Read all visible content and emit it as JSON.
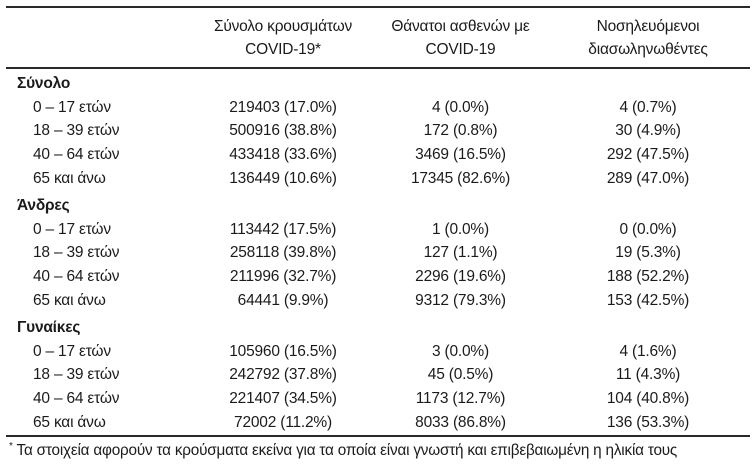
{
  "table": {
    "col_headers": [
      {
        "line1": "Σύνολο κρουσμάτων",
        "line2": "COVID-19*"
      },
      {
        "line1": "Θάνατοι ασθενών με",
        "line2": "COVID-19"
      },
      {
        "line1": "Νοσηλευόμενοι",
        "line2": "διασωληνωθέντες"
      }
    ],
    "groups": [
      {
        "label": "Σύνολο",
        "rows": [
          {
            "label": "0 – 17 ετών",
            "cases": "219403 (17.0%)",
            "deaths": "4 (0.0%)",
            "intubated": "4 (0.7%)"
          },
          {
            "label": "18 – 39 ετών",
            "cases": "500916 (38.8%)",
            "deaths": "172 (0.8%)",
            "intubated": "30 (4.9%)"
          },
          {
            "label": "40 – 64 ετών",
            "cases": "433418 (33.6%)",
            "deaths": "3469 (16.5%)",
            "intubated": "292 (47.5%)"
          },
          {
            "label": "65 και άνω",
            "cases": "136449 (10.6%)",
            "deaths": "17345 (82.6%)",
            "intubated": "289 (47.0%)"
          }
        ]
      },
      {
        "label": "Άνδρες",
        "rows": [
          {
            "label": "0 – 17 ετών",
            "cases": "113442 (17.5%)",
            "deaths": "1 (0.0%)",
            "intubated": "0 (0.0%)"
          },
          {
            "label": "18 – 39 ετών",
            "cases": "258118 (39.8%)",
            "deaths": "127 (1.1%)",
            "intubated": "19 (5.3%)"
          },
          {
            "label": "40 – 64 ετών",
            "cases": "211996 (32.7%)",
            "deaths": "2296 (19.6%)",
            "intubated": "188 (52.2%)"
          },
          {
            "label": "65 και άνω",
            "cases": "64441 (9.9%)",
            "deaths": "9312 (79.3%)",
            "intubated": "153 (42.5%)"
          }
        ]
      },
      {
        "label": "Γυναίκες",
        "rows": [
          {
            "label": "0 – 17 ετών",
            "cases": "105960 (16.5%)",
            "deaths": "3 (0.0%)",
            "intubated": "4 (1.6%)"
          },
          {
            "label": "18 – 39 ετών",
            "cases": "242792 (37.8%)",
            "deaths": "45 (0.5%)",
            "intubated": "11 (4.3%)"
          },
          {
            "label": "40 – 64 ετών",
            "cases": "221407 (34.5%)",
            "deaths": "1173 (12.7%)",
            "intubated": "104 (40.8%)"
          },
          {
            "label": "65 και άνω",
            "cases": "72002 (11.2%)",
            "deaths": "8033 (86.8%)",
            "intubated": "136 (53.3%)"
          }
        ]
      }
    ],
    "footnote": {
      "marker": "*",
      "text": "Τα στοιχεία αφορούν τα κρούσματα εκείνα για τα οποία είναι γνωστή και επιβεβαιωμένη η ηλικία τους"
    }
  },
  "colors": {
    "text": "#1b1b1b",
    "rule": "#2a2a2a",
    "background": "#ffffff"
  }
}
